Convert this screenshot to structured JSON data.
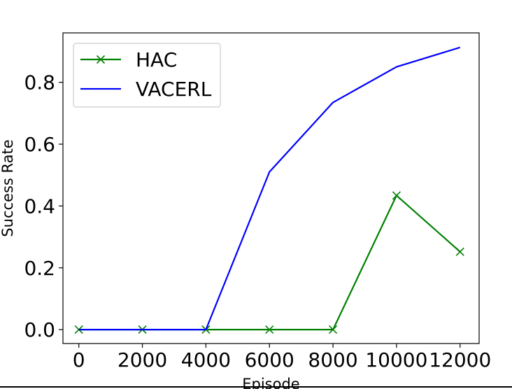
{
  "chart_data": {
    "type": "line",
    "title": "",
    "xlabel": "Episode",
    "ylabel": "Success Rate",
    "x": [
      0,
      2000,
      4000,
      6000,
      8000,
      10000,
      12000
    ],
    "xticks": [
      "0",
      "2000",
      "4000",
      "6000",
      "8000",
      "10000",
      "12000"
    ],
    "yticks": [
      "0.0",
      "0.2",
      "0.4",
      "0.6",
      "0.8"
    ],
    "xlim": [
      -500,
      12600
    ],
    "ylim": [
      -0.045,
      0.96
    ],
    "grid": false,
    "legend_position": "upper-left",
    "series": [
      {
        "name": "HAC",
        "color": "#008000",
        "marker": "x",
        "values": [
          0.0,
          0.0,
          0.0,
          0.0,
          0.0,
          0.434,
          0.252
        ]
      },
      {
        "name": "VACERL",
        "color": "#0000ff",
        "marker": "none",
        "values": [
          0.0,
          0.0,
          0.0,
          0.51,
          0.735,
          0.85,
          0.913
        ]
      }
    ]
  }
}
